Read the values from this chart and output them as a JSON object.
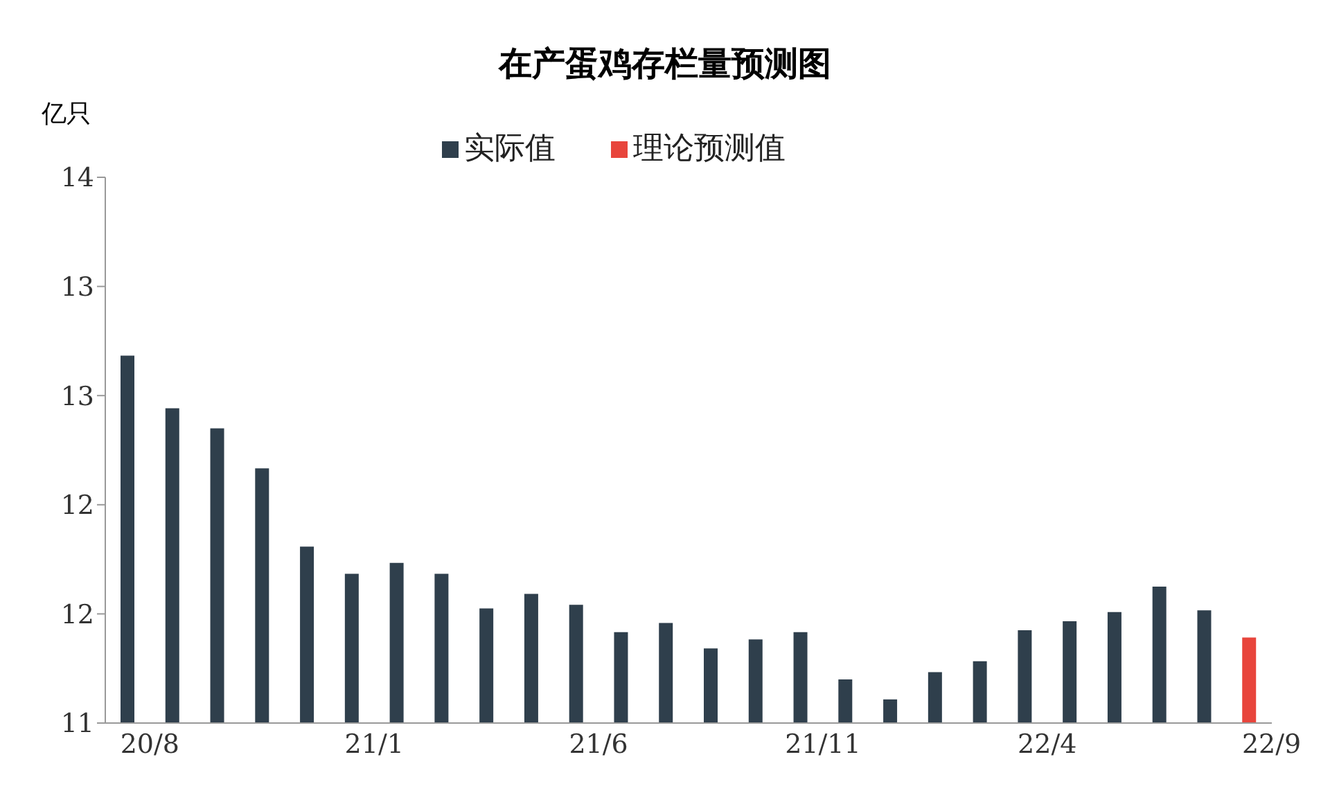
{
  "chart_data": {
    "type": "bar",
    "title": "在产蛋鸡存栏量预测图",
    "ylabel": "亿只",
    "categories": [
      "20/8",
      null,
      null,
      null,
      null,
      "21/1",
      null,
      null,
      null,
      null,
      "21/6",
      null,
      null,
      null,
      null,
      "21/11",
      null,
      null,
      null,
      null,
      "22/4",
      null,
      null,
      null,
      null,
      "22/9"
    ],
    "series": [
      {
        "name": "实际值",
        "color": "#2f3f4c",
        "values": [
          13.02,
          12.73,
          12.62,
          12.4,
          11.97,
          11.82,
          11.88,
          11.82,
          11.63,
          11.71,
          11.65,
          11.5,
          11.55,
          11.41,
          11.46,
          11.5,
          11.24,
          11.13,
          11.28,
          11.34,
          11.51,
          11.56,
          11.61,
          11.75,
          11.62,
          null
        ]
      },
      {
        "name": "理论预测值",
        "color": "#e8453c",
        "values": [
          null,
          null,
          null,
          null,
          null,
          null,
          null,
          null,
          null,
          null,
          null,
          null,
          null,
          null,
          null,
          null,
          null,
          null,
          null,
          null,
          null,
          null,
          null,
          null,
          null,
          11.47
        ]
      }
    ],
    "ylim": [
      11,
      14
    ],
    "yticks": [
      11,
      {
        "value": 11.6,
        "label": "12"
      },
      {
        "value": 12.2,
        "label": "12"
      },
      {
        "value": 12.8,
        "label": "13"
      },
      {
        "value": 13.4,
        "label": "13"
      },
      14
    ],
    "grid": false,
    "legend": "top",
    "stacked": true
  }
}
